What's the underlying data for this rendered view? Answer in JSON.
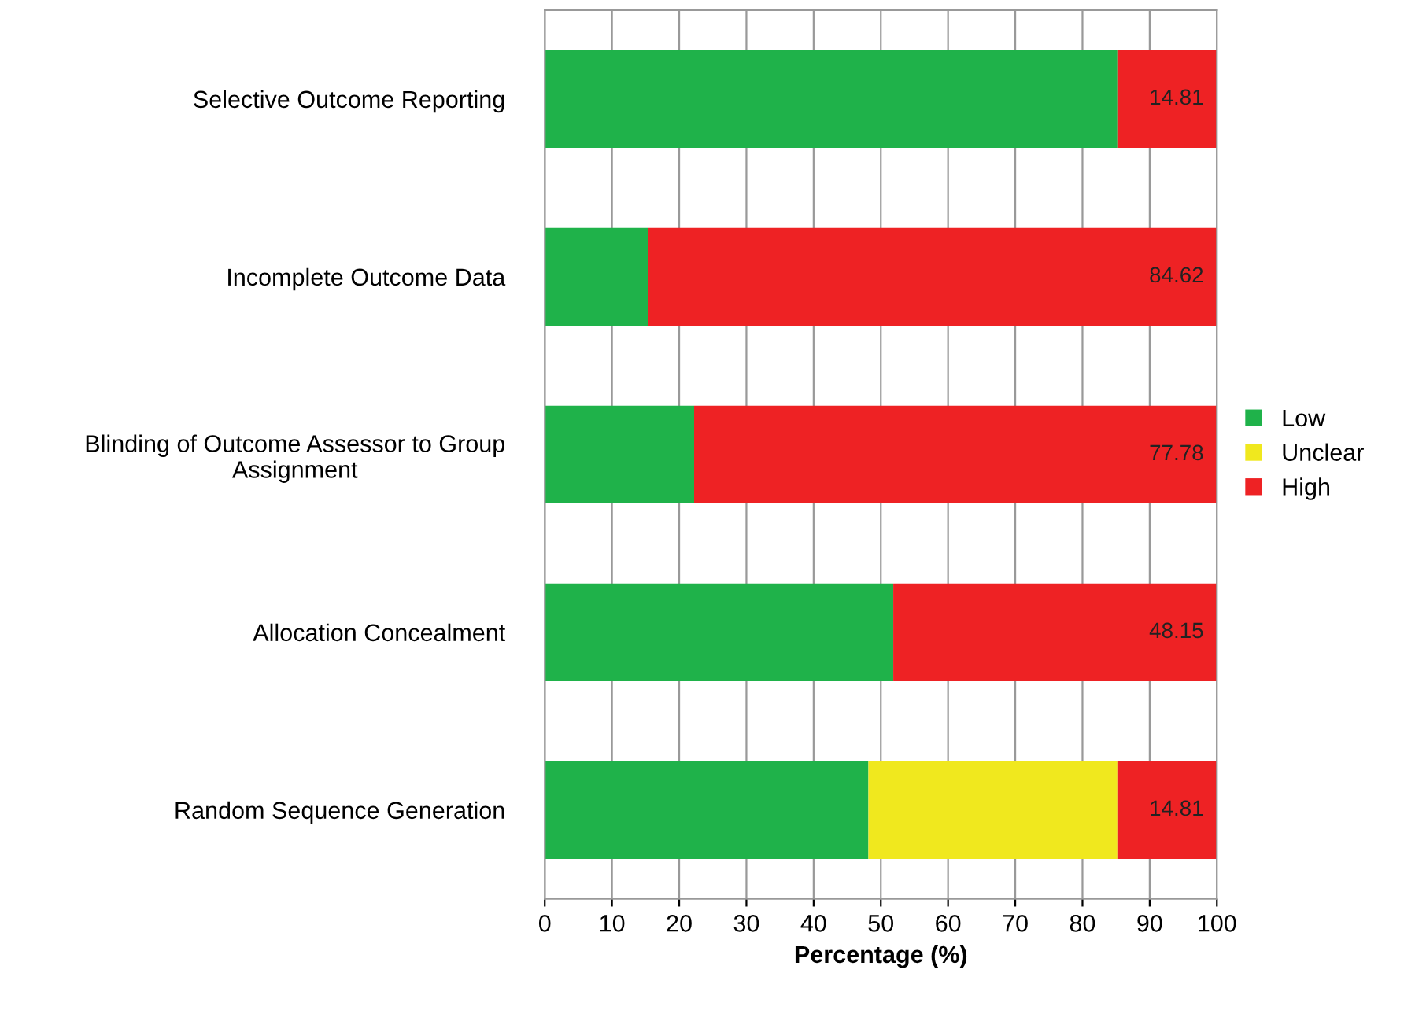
{
  "chart_data": {
    "type": "bar",
    "orientation": "horizontal",
    "stacked": true,
    "xlabel": "Percentage (%)",
    "categories": [
      "Selective Outcome Reporting",
      "Incomplete Outcome Data",
      "Blinding of Outcome Assessor to Group\nAssignment",
      "Allocation Concealment",
      "Random Sequence Generation"
    ],
    "series": [
      {
        "name": "Low",
        "color": "#1fb24a",
        "values": [
          85.19,
          15.38,
          22.22,
          51.85,
          48.15
        ]
      },
      {
        "name": "Unclear",
        "color": "#f0e81e",
        "values": [
          0,
          0,
          0,
          0,
          37.04
        ]
      },
      {
        "name": "High",
        "color": "#ee2224",
        "values": [
          14.81,
          84.62,
          77.78,
          48.15,
          14.81
        ],
        "value_labels": [
          "14.81",
          "84.62",
          "77.78",
          "48.15",
          "14.81"
        ]
      }
    ],
    "xlim": [
      0,
      100
    ],
    "xticks": [
      0,
      10,
      20,
      30,
      40,
      50,
      60,
      70,
      80,
      90,
      100
    ],
    "grid": "x",
    "legend": "right"
  }
}
